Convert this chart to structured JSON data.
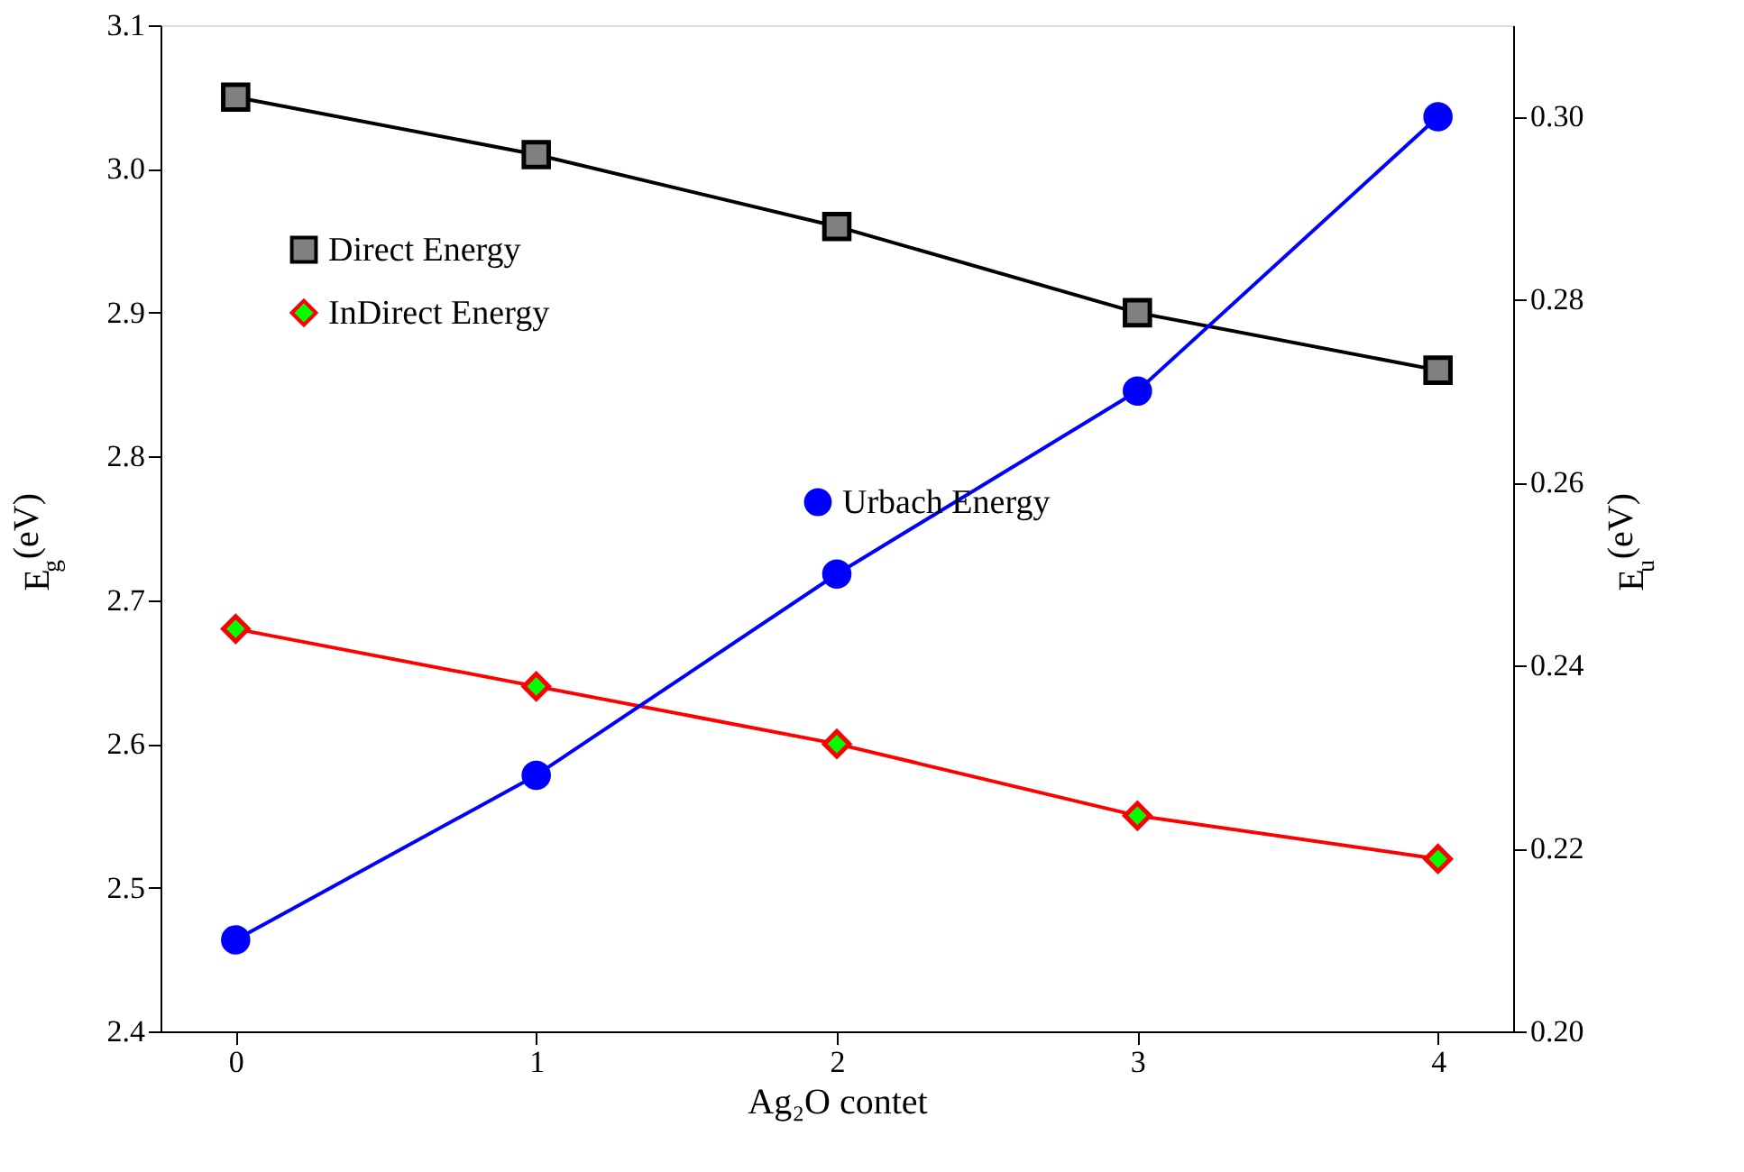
{
  "chart_data": {
    "type": "line",
    "xlabel": "Ag₂O  contet",
    "ylabel": "E$_{g}$ (eV)",
    "y2label": "E$_{u}$ (eV)",
    "x": [
      0,
      1,
      2,
      3,
      4
    ],
    "series": [
      {
        "name": "Direct Energy",
        "color": "#000000",
        "marker": "square",
        "values": [
          3.05,
          3.01,
          2.96,
          2.9,
          2.86
        ]
      },
      {
        "name": "InDirect Energy",
        "color": "#ff0000",
        "marker": "diamond",
        "values": [
          2.68,
          2.64,
          2.6,
          2.55,
          2.52
        ]
      },
      {
        "name": "Urbach Energy",
        "color": "#0000ff",
        "marker": "circle",
        "axis": "y2",
        "values": [
          0.21,
          0.228,
          0.25,
          0.27,
          0.3
        ]
      }
    ],
    "xlim": [
      -0.25,
      4.25
    ],
    "xticks": [
      0,
      1,
      2,
      3,
      4
    ],
    "ylim": [
      2.4,
      3.1
    ],
    "yticks": [
      2.4,
      2.5,
      2.6,
      2.7,
      2.8,
      2.9,
      {
        "value": 3.0,
        "label": "3.0"
      },
      3.1
    ],
    "y2lim": [
      0.2,
      0.31
    ],
    "y2ticks": [
      {
        "value": 0.2,
        "label": "0.20"
      },
      0.22,
      0.24,
      0.26,
      0.28,
      {
        "value": 0.3,
        "label": "0.30"
      }
    ],
    "legend": "top left",
    "grid": false,
    "line_style": "solid"
  }
}
